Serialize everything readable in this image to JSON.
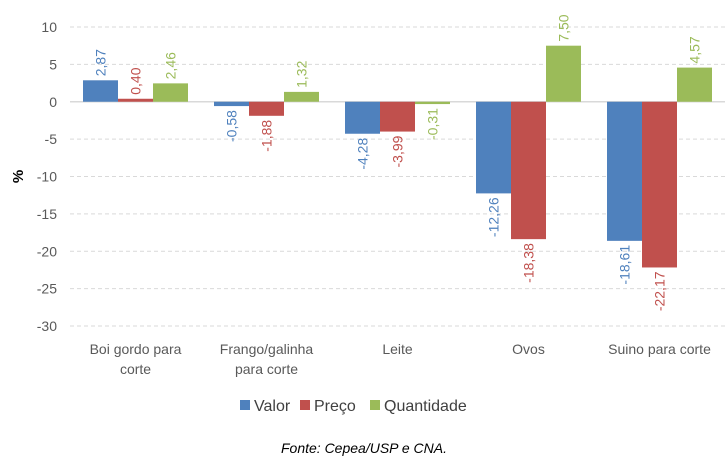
{
  "chart_data": {
    "type": "bar",
    "title": "",
    "xlabel": "",
    "ylabel": "%",
    "ylim": [
      -30,
      10
    ],
    "yticks": [
      10,
      5,
      0,
      -5,
      -10,
      -15,
      -20,
      -25,
      -30
    ],
    "ytick_labels": [
      "10",
      "5",
      "0",
      "-5",
      "-10",
      "-15",
      "-20",
      "-25",
      "-30"
    ],
    "grid": true,
    "legend_position": "bottom",
    "categories": [
      [
        "Boi gordo para",
        "corte"
      ],
      [
        "Frango/galinha",
        "para corte"
      ],
      [
        "Leite"
      ],
      [
        "Ovos"
      ],
      [
        "Suino para corte"
      ]
    ],
    "series": [
      {
        "name": "Valor",
        "color": "#4f81bd",
        "values": [
          2.87,
          -0.58,
          -4.28,
          -12.26,
          -18.61
        ],
        "labels": [
          "2,87",
          "-0,58",
          "-4,28",
          "-12,26",
          "-18,61"
        ]
      },
      {
        "name": "Preço",
        "color": "#c0504d",
        "values": [
          0.4,
          -1.88,
          -3.99,
          -18.38,
          -22.17
        ],
        "labels": [
          "0,40",
          "-1,88",
          "-3,99",
          "-18,38",
          "-22,17"
        ]
      },
      {
        "name": "Quantidade",
        "color": "#9bbb59",
        "values": [
          2.46,
          1.32,
          -0.31,
          7.5,
          4.57
        ],
        "labels": [
          "2,46",
          "1,32",
          "-0,31",
          "7,50",
          "4,57"
        ]
      }
    ],
    "source": "Fonte: Cepea/USP e CNA."
  }
}
